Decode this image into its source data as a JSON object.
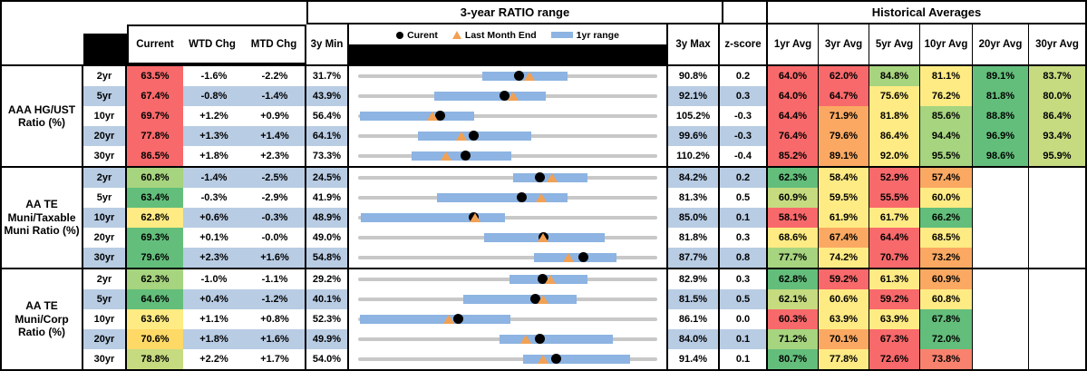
{
  "header": {
    "range_title": "3-year RATIO range",
    "hist_title": "Historical Averages",
    "col_current": "Current",
    "col_wtd": "WTD Chg",
    "col_mtd": "MTD Chg",
    "col_3y_min": "3y Min",
    "col_3y_max": "3y Max",
    "col_zscore": "z-score",
    "avg_cols": [
      "1yr Avg",
      "3yr Avg",
      "5yr Avg",
      "10yr Avg",
      "20yr Avg",
      "30yr Avg"
    ],
    "legend": {
      "current": "Curent",
      "last_month": "Last Month End",
      "range": "1yr range"
    }
  },
  "palette": {
    "stripe_blue": "#B8CCE4",
    "bar_blue": "#8DB4E2",
    "track_gray": "#C8C8C8",
    "marker_orange": "#F2A154",
    "marker_black": "#000000",
    "red": "#F8696B",
    "salmon": "#F9826E",
    "orange": "#FBA962",
    "gold": "#FFD966",
    "yellow": "#FFEB84",
    "ygreen": "#C6DB80",
    "lgreen": "#A6D47F",
    "green": "#63BE7B"
  },
  "groups": [
    {
      "label": "AAA HG/UST Ratio (%)",
      "rows": [
        {
          "t": "2yr",
          "cur": "63.5%",
          "curc": "red",
          "wtd": "-1.6%",
          "mtd": "-2.2%",
          "min": "31.7%",
          "max": "90.8%",
          "z": "0.2",
          "bar": [
            41.5,
            70.0
          ],
          "tri": 57.2,
          "dot": 53.8,
          "avgs": [
            {
              "v": "64.0%",
              "c": "red"
            },
            {
              "v": "62.0%",
              "c": "red"
            },
            {
              "v": "84.8%",
              "c": "lgreen"
            },
            {
              "v": "81.1%",
              "c": "yellow"
            },
            {
              "v": "89.1%",
              "c": "green"
            },
            {
              "v": "83.7%",
              "c": "ygreen"
            }
          ]
        },
        {
          "t": "5yr",
          "cur": "67.4%",
          "curc": "red",
          "wtd": "-0.8%",
          "mtd": "-1.4%",
          "min": "43.9%",
          "max": "92.1%",
          "z": "0.3",
          "bar": [
            25.6,
            62.7
          ],
          "tri": 51.7,
          "dot": 48.8,
          "avgs": [
            {
              "v": "64.0%",
              "c": "red"
            },
            {
              "v": "64.7%",
              "c": "red"
            },
            {
              "v": "75.6%",
              "c": "yellow"
            },
            {
              "v": "76.2%",
              "c": "yellow"
            },
            {
              "v": "81.8%",
              "c": "green"
            },
            {
              "v": "80.0%",
              "c": "ygreen"
            }
          ]
        },
        {
          "t": "10yr",
          "cur": "69.7%",
          "curc": "red",
          "wtd": "+1.2%",
          "mtd": "+0.9%",
          "min": "56.4%",
          "max": "105.2%",
          "z": "-0.3",
          "bar": [
            0.5,
            38.9
          ],
          "tri": 24.9,
          "dot": 27.3,
          "avgs": [
            {
              "v": "64.4%",
              "c": "red"
            },
            {
              "v": "71.9%",
              "c": "orange"
            },
            {
              "v": "81.8%",
              "c": "yellow"
            },
            {
              "v": "85.6%",
              "c": "lgreen"
            },
            {
              "v": "88.8%",
              "c": "green"
            },
            {
              "v": "86.4%",
              "c": "ygreen"
            }
          ]
        },
        {
          "t": "20yr",
          "cur": "77.8%",
          "curc": "red",
          "wtd": "+1.3%",
          "mtd": "+1.4%",
          "min": "64.1%",
          "max": "99.6%",
          "z": "-0.3",
          "bar": [
            19.9,
            57.9
          ],
          "tri": 34.4,
          "dot": 38.6,
          "avgs": [
            {
              "v": "76.4%",
              "c": "red"
            },
            {
              "v": "79.6%",
              "c": "orange"
            },
            {
              "v": "86.4%",
              "c": "yellow"
            },
            {
              "v": "94.4%",
              "c": "lgreen"
            },
            {
              "v": "96.9%",
              "c": "green"
            },
            {
              "v": "93.4%",
              "c": "ygreen"
            }
          ]
        },
        {
          "t": "30yr",
          "cur": "86.5%",
          "curc": "red",
          "wtd": "+1.8%",
          "mtd": "+2.3%",
          "min": "73.3%",
          "max": "110.2%",
          "z": "-0.4",
          "bar": [
            17.8,
            51.2
          ],
          "tri": 29.4,
          "dot": 35.8,
          "avgs": [
            {
              "v": "85.2%",
              "c": "red"
            },
            {
              "v": "89.1%",
              "c": "orange"
            },
            {
              "v": "92.0%",
              "c": "yellow"
            },
            {
              "v": "95.5%",
              "c": "lgreen"
            },
            {
              "v": "98.6%",
              "c": "green"
            },
            {
              "v": "95.9%",
              "c": "ygreen"
            }
          ]
        }
      ]
    },
    {
      "label": "AA TE Muni/Taxable Muni Ratio (%)",
      "rows": [
        {
          "t": "2yr",
          "cur": "60.8%",
          "curc": "lgreen",
          "wtd": "-1.4%",
          "mtd": "-2.5%",
          "min": "24.5%",
          "max": "84.2%",
          "z": "0.2",
          "bar": [
            51.8,
            76.8
          ],
          "tri": 64.8,
          "dot": 60.8,
          "avgs": [
            {
              "v": "62.3%",
              "c": "green"
            },
            {
              "v": "58.4%",
              "c": "yellow"
            },
            {
              "v": "52.9%",
              "c": "red"
            },
            {
              "v": "57.4%",
              "c": "orange"
            },
            {
              "v": "",
              "c": null
            },
            {
              "v": "",
              "c": null
            }
          ]
        },
        {
          "t": "5yr",
          "cur": "63.4%",
          "curc": "green",
          "wtd": "-0.3%",
          "mtd": "-2.9%",
          "min": "41.9%",
          "max": "81.3%",
          "z": "0.5",
          "bar": [
            26.5,
            70.1
          ],
          "tri": 61.2,
          "dot": 54.6,
          "avgs": [
            {
              "v": "60.9%",
              "c": "ygreen"
            },
            {
              "v": "59.5%",
              "c": "yellow"
            },
            {
              "v": "55.5%",
              "c": "red"
            },
            {
              "v": "60.0%",
              "c": "yellow"
            },
            {
              "v": "",
              "c": null
            },
            {
              "v": "",
              "c": null
            }
          ]
        },
        {
          "t": "10yr",
          "cur": "62.8%",
          "curc": "yellow",
          "wtd": "+0.6%",
          "mtd": "-0.3%",
          "min": "48.9%",
          "max": "85.0%",
          "z": "0.1",
          "bar": [
            1.0,
            49.2
          ],
          "tri": 39.2,
          "dot": 38.5,
          "avgs": [
            {
              "v": "58.1%",
              "c": "red"
            },
            {
              "v": "61.9%",
              "c": "yellow"
            },
            {
              "v": "61.7%",
              "c": "yellow"
            },
            {
              "v": "66.2%",
              "c": "green"
            },
            {
              "v": "",
              "c": null
            },
            {
              "v": "",
              "c": null
            }
          ]
        },
        {
          "t": "20yr",
          "cur": "69.3%",
          "curc": "green",
          "wtd": "+0.1%",
          "mtd": "-0.0%",
          "min": "49.0%",
          "max": "81.8%",
          "z": "0.3",
          "bar": [
            42.2,
            82.3
          ],
          "tri": 61.7,
          "dot": 61.9,
          "avgs": [
            {
              "v": "68.6%",
              "c": "yellow"
            },
            {
              "v": "67.4%",
              "c": "orange"
            },
            {
              "v": "64.4%",
              "c": "red"
            },
            {
              "v": "68.5%",
              "c": "yellow"
            },
            {
              "v": "",
              "c": null
            },
            {
              "v": "",
              "c": null
            }
          ]
        },
        {
          "t": "30yr",
          "cur": "79.6%",
          "curc": "green",
          "wtd": "+2.3%",
          "mtd": "+1.6%",
          "min": "54.8%",
          "max": "87.7%",
          "z": "0.8",
          "bar": [
            58.7,
            86.4
          ],
          "tri": 70.2,
          "dot": 75.4,
          "avgs": [
            {
              "v": "77.7%",
              "c": "lgreen"
            },
            {
              "v": "74.2%",
              "c": "yellow"
            },
            {
              "v": "70.7%",
              "c": "red"
            },
            {
              "v": "73.2%",
              "c": "orange"
            },
            {
              "v": "",
              "c": null
            },
            {
              "v": "",
              "c": null
            }
          ]
        }
      ]
    },
    {
      "label": "AA TE Muni/Corp Ratio (%)",
      "rows": [
        {
          "t": "2yr",
          "cur": "62.3%",
          "curc": "lgreen",
          "wtd": "-1.0%",
          "mtd": "-1.1%",
          "min": "29.2%",
          "max": "82.9%",
          "z": "0.3",
          "bar": [
            50.5,
            76.8
          ],
          "tri": 64.1,
          "dot": 61.6,
          "avgs": [
            {
              "v": "62.8%",
              "c": "green"
            },
            {
              "v": "59.2%",
              "c": "red"
            },
            {
              "v": "61.3%",
              "c": "yellow"
            },
            {
              "v": "60.9%",
              "c": "orange"
            },
            {
              "v": "",
              "c": null
            },
            {
              "v": "",
              "c": null
            }
          ]
        },
        {
          "t": "5yr",
          "cur": "64.6%",
          "curc": "green",
          "wtd": "+0.4%",
          "mtd": "-1.2%",
          "min": "40.1%",
          "max": "81.5%",
          "z": "0.5",
          "bar": [
            35.1,
            73.1
          ],
          "tri": 61.7,
          "dot": 59.2,
          "avgs": [
            {
              "v": "62.1%",
              "c": "ygreen"
            },
            {
              "v": "60.6%",
              "c": "yellow"
            },
            {
              "v": "59.2%",
              "c": "red"
            },
            {
              "v": "60.8%",
              "c": "yellow"
            },
            {
              "v": "",
              "c": null
            },
            {
              "v": "",
              "c": null
            }
          ]
        },
        {
          "t": "10yr",
          "cur": "63.6%",
          "curc": "yellow",
          "wtd": "+1.1%",
          "mtd": "+0.8%",
          "min": "52.3%",
          "max": "86.1%",
          "z": "0.0",
          "bar": [
            0.5,
            51.0
          ],
          "tri": 30.4,
          "dot": 33.4,
          "avgs": [
            {
              "v": "60.3%",
              "c": "red"
            },
            {
              "v": "63.9%",
              "c": "yellow"
            },
            {
              "v": "63.9%",
              "c": "yellow"
            },
            {
              "v": "67.8%",
              "c": "green"
            },
            {
              "v": "",
              "c": null
            },
            {
              "v": "",
              "c": null
            }
          ]
        },
        {
          "t": "20yr",
          "cur": "70.6%",
          "curc": "gold",
          "wtd": "+1.8%",
          "mtd": "+1.6%",
          "min": "49.9%",
          "max": "84.0%",
          "z": "0.1",
          "bar": [
            47.2,
            85.3
          ],
          "tri": 56.0,
          "dot": 60.7,
          "avgs": [
            {
              "v": "71.2%",
              "c": "lgreen"
            },
            {
              "v": "70.1%",
              "c": "orange"
            },
            {
              "v": "67.3%",
              "c": "red"
            },
            {
              "v": "72.0%",
              "c": "green"
            },
            {
              "v": "",
              "c": null
            },
            {
              "v": "",
              "c": null
            }
          ]
        },
        {
          "t": "30yr",
          "cur": "78.8%",
          "curc": "ygreen",
          "wtd": "+2.2%",
          "mtd": "+1.7%",
          "min": "54.0%",
          "max": "91.4%",
          "z": "0.1",
          "bar": [
            55.0,
            90.9
          ],
          "tri": 61.9,
          "dot": 66.3,
          "avgs": [
            {
              "v": "80.7%",
              "c": "green"
            },
            {
              "v": "77.8%",
              "c": "yellow"
            },
            {
              "v": "72.6%",
              "c": "red"
            },
            {
              "v": "73.8%",
              "c": "salmon"
            },
            {
              "v": "",
              "c": null
            },
            {
              "v": "",
              "c": null
            }
          ]
        }
      ]
    }
  ],
  "chart_data": {
    "type": "table",
    "notes": "Each row's range chart spans 3y Min to 3y Max; blue bar = 1yr range (values estimated from bar position), black dot = current, orange triangle = last month end. All values in percent.",
    "columns": [
      "Group",
      "Tenor",
      "Current",
      "WTD Chg",
      "MTD Chg",
      "3y Min",
      "1yr Range Low (est)",
      "1yr Range High (est)",
      "Last Month End (est)",
      "3y Max",
      "z-score",
      "1yr Avg",
      "3yr Avg",
      "5yr Avg",
      "10yr Avg",
      "20yr Avg",
      "30yr Avg"
    ],
    "rows": [
      [
        "AAA HG/UST Ratio (%)",
        "2yr",
        63.5,
        -1.6,
        -2.2,
        31.7,
        56.2,
        73.1,
        65.5,
        90.8,
        0.2,
        64.0,
        62.0,
        84.8,
        81.1,
        89.1,
        83.7
      ],
      [
        "AAA HG/UST Ratio (%)",
        "5yr",
        67.4,
        -0.8,
        -1.4,
        43.9,
        56.2,
        74.1,
        68.8,
        92.1,
        0.3,
        64.0,
        64.7,
        75.6,
        76.2,
        81.8,
        80.0
      ],
      [
        "AAA HG/UST Ratio (%)",
        "10yr",
        69.7,
        1.2,
        0.9,
        56.4,
        56.6,
        75.4,
        68.6,
        105.2,
        -0.3,
        64.4,
        71.9,
        81.8,
        85.6,
        88.8,
        86.4
      ],
      [
        "AAA HG/UST Ratio (%)",
        "20yr",
        77.8,
        1.3,
        1.4,
        64.1,
        71.2,
        84.7,
        76.3,
        99.6,
        -0.3,
        76.4,
        79.6,
        86.4,
        94.4,
        96.9,
        93.4
      ],
      [
        "AAA HG/UST Ratio (%)",
        "30yr",
        86.5,
        1.8,
        2.3,
        73.3,
        79.9,
        92.2,
        84.1,
        110.2,
        -0.4,
        85.2,
        89.1,
        92.0,
        95.5,
        98.6,
        95.9
      ],
      [
        "AA TE Muni/Taxable Muni Ratio (%)",
        "2yr",
        60.8,
        -1.4,
        -2.5,
        24.5,
        55.4,
        70.4,
        63.2,
        84.2,
        0.2,
        62.3,
        58.4,
        52.9,
        57.4,
        null,
        null
      ],
      [
        "AA TE Muni/Taxable Muni Ratio (%)",
        "5yr",
        63.4,
        -0.3,
        -2.9,
        41.9,
        52.3,
        69.5,
        66.0,
        81.3,
        0.5,
        60.9,
        59.5,
        55.5,
        60.0,
        null,
        null
      ],
      [
        "AA TE Muni/Taxable Muni Ratio (%)",
        "10yr",
        62.8,
        0.6,
        -0.3,
        48.9,
        49.3,
        66.7,
        63.1,
        85.0,
        0.1,
        58.1,
        61.9,
        61.7,
        66.2,
        null,
        null
      ],
      [
        "AA TE Muni/Taxable Muni Ratio (%)",
        "20yr",
        69.3,
        0.1,
        -0.0,
        49.0,
        62.8,
        76.0,
        69.2,
        81.8,
        0.3,
        68.6,
        67.4,
        64.4,
        68.5,
        null,
        null
      ],
      [
        "AA TE Muni/Taxable Muni Ratio (%)",
        "30yr",
        79.6,
        2.3,
        1.6,
        54.8,
        74.1,
        83.2,
        77.9,
        87.7,
        0.8,
        77.7,
        74.2,
        70.7,
        73.2,
        null,
        null
      ],
      [
        "AA TE Muni/Corp Ratio (%)",
        "2yr",
        62.3,
        -1.0,
        -1.1,
        29.2,
        56.3,
        70.4,
        63.6,
        82.9,
        0.3,
        62.8,
        59.2,
        61.3,
        60.9,
        null,
        null
      ],
      [
        "AA TE Muni/Corp Ratio (%)",
        "5yr",
        64.6,
        0.4,
        -1.2,
        40.1,
        54.6,
        70.4,
        65.6,
        81.5,
        0.5,
        62.1,
        60.6,
        59.2,
        60.8,
        null,
        null
      ],
      [
        "AA TE Muni/Corp Ratio (%)",
        "10yr",
        63.6,
        1.1,
        0.8,
        52.3,
        52.5,
        69.5,
        62.6,
        86.1,
        0.0,
        60.3,
        63.9,
        63.9,
        67.8,
        null,
        null
      ],
      [
        "AA TE Muni/Corp Ratio (%)",
        "20yr",
        70.6,
        1.8,
        1.6,
        49.9,
        66.0,
        79.0,
        69.0,
        84.0,
        0.1,
        71.2,
        70.1,
        67.3,
        72.0,
        null,
        null
      ],
      [
        "AA TE Muni/Corp Ratio (%)",
        "30yr",
        78.8,
        2.2,
        1.7,
        54.0,
        74.6,
        88.0,
        77.2,
        91.4,
        0.1,
        80.7,
        77.8,
        72.6,
        73.8,
        null,
        null
      ]
    ]
  }
}
